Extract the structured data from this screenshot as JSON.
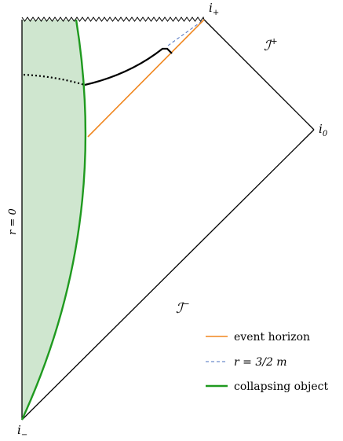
{
  "labels": {
    "i_plus": {
      "main": "i",
      "sub": "+"
    },
    "i_zero": {
      "main": "i",
      "sub": "0"
    },
    "i_minus": {
      "main": "i",
      "sub": "−"
    },
    "scri_plus": {
      "main": "ℐ",
      "sup": "+"
    },
    "scri_minus": {
      "main": "ℐ",
      "sup": "−"
    },
    "r_zero": "r = 0"
  },
  "legend": {
    "items": [
      {
        "label": "event horizon",
        "color": "#f0861e",
        "style": "solid"
      },
      {
        "label": "r = 3/2 m",
        "color": "#4a6fbf",
        "style": "dashed"
      },
      {
        "label": "collapsing object",
        "color": "#1f9a1f",
        "style": "solid-thick"
      }
    ]
  },
  "colors": {
    "object_fill": "#cfe6cf",
    "object_boundary": "#1f9a1f",
    "horizon": "#f0861e",
    "photon_sphere": "#4a6fbf",
    "outline": "#000000"
  }
}
